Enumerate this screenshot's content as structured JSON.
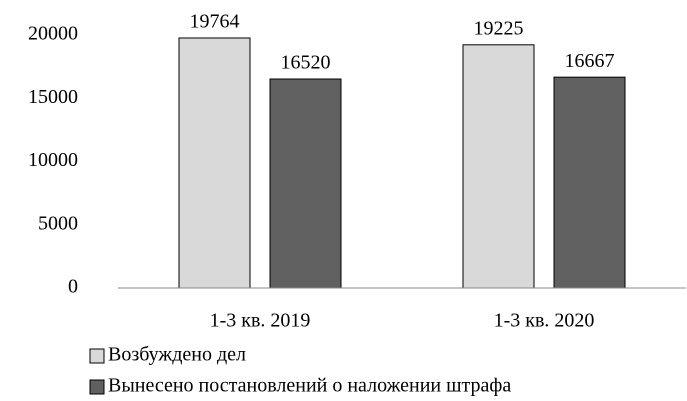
{
  "chart_data": {
    "type": "bar",
    "categories": [
      "1-3 кв. 2019",
      "1-3 кв. 2020"
    ],
    "series": [
      {
        "name": "Возбуждено дел",
        "color": "#d9d9d9",
        "values": [
          19764,
          19225
        ]
      },
      {
        "name": "Вынесено постановлений о наложении штрафа",
        "color": "#606060",
        "values": [
          16520,
          16667
        ]
      }
    ],
    "ylim": [
      0,
      20000
    ],
    "yticks": [
      0,
      5000,
      10000,
      15000,
      20000
    ],
    "grid": false,
    "legend": "bottom-left"
  }
}
